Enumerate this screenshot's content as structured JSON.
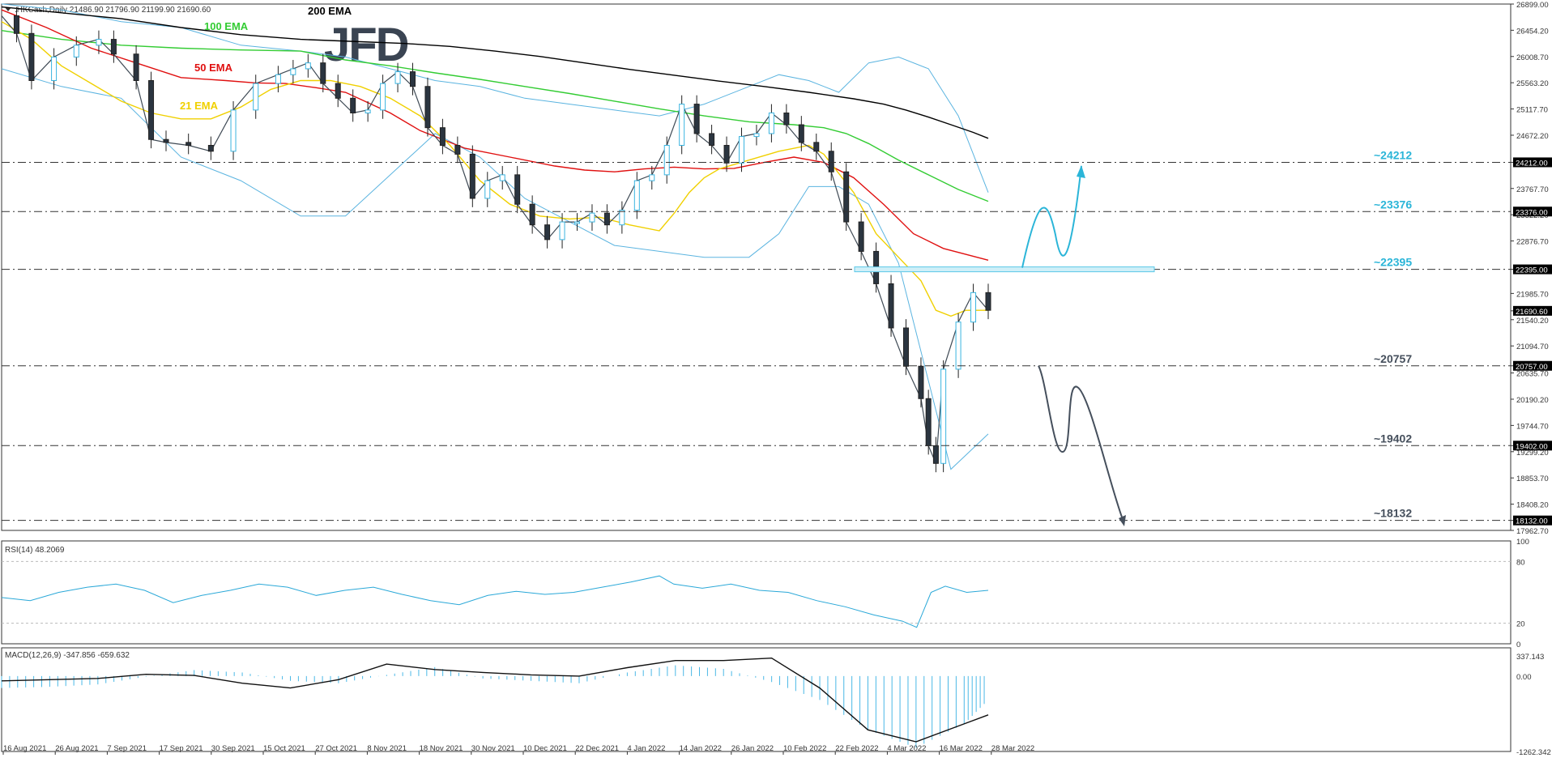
{
  "header": {
    "symbol_line": ".HKCash,Daily  21486.90 21796.90 21199.90 21690.60",
    "rsi_label": "RSI(14) 48.2069",
    "macd_label": "MACD(12,26,9) -347.856 -659.632",
    "logo": "JFD"
  },
  "chart_data": {
    "type": "line",
    "title": "",
    "xlabel": "",
    "ylabel": "",
    "ylim": [
      17962.7,
      26899.0
    ],
    "grid": false,
    "price_axis_ticks": [
      "26899.00",
      "26454.20",
      "26008.70",
      "25563.20",
      "25117.70",
      "24672.20",
      "24212.00",
      "23767.70",
      "23322.20",
      "22876.70",
      "22395.00",
      "21985.70",
      "21690.60",
      "21540.20",
      "21094.70",
      "20757.00",
      "20635.70",
      "20190.20",
      "19744.70",
      "19402.00",
      "19299.20",
      "18853.70",
      "18408.20",
      "18132.00",
      "17962.70"
    ],
    "date_labels": [
      "16 Aug 2021",
      "26 Aug 2021",
      "7 Sep 2021",
      "17 Sep 2021",
      "30 Sep 2021",
      "15 Oct 2021",
      "27 Oct 2021",
      "8 Nov 2021",
      "18 Nov 2021",
      "30 Nov 2021",
      "10 Dec 2021",
      "22 Dec 2021",
      "4 Jan 2022",
      "14 Jan 2022",
      "26 Jan 2022",
      "10 Feb 2022",
      "22 Feb 2022",
      "4 Mar 2022",
      "16 Mar 2022",
      "28 Mar 2022"
    ],
    "current_price": "21690.60",
    "levels": [
      {
        "value": 24212,
        "label": "~24212",
        "axis_label": "24212.00",
        "color": "#2bb5d8"
      },
      {
        "value": 23376,
        "label": "~23376",
        "axis_label": "23376.00",
        "color": "#2bb5d8"
      },
      {
        "value": 22395,
        "label": "~22395",
        "axis_label": "22395.00",
        "color": "#2bb5d8"
      },
      {
        "value": 20757,
        "label": "~20757",
        "axis_label": "20757.00",
        "color": "#454f5c"
      },
      {
        "value": 19402,
        "label": "~19402",
        "axis_label": "19402.00",
        "color": "#454f5c"
      },
      {
        "value": 18132,
        "label": "~18132",
        "axis_label": "18132.00",
        "color": "#454f5c"
      }
    ],
    "ema_labels": [
      {
        "text": "200 EMA",
        "color": "#000000"
      },
      {
        "text": "100 EMA",
        "color": "#33cc33"
      },
      {
        "text": "50 EMA",
        "color": "#e01010"
      },
      {
        "text": "21 EMA",
        "color": "#f0d000"
      }
    ],
    "series": [
      {
        "name": "200 EMA",
        "color": "#000000",
        "values": [
          [
            0,
            26850
          ],
          [
            40,
            26750
          ],
          [
            80,
            26650
          ],
          [
            120,
            26500
          ],
          [
            160,
            26380
          ],
          [
            200,
            26300
          ],
          [
            240,
            26260
          ],
          [
            270,
            26230
          ],
          [
            300,
            26180
          ],
          [
            330,
            26100
          ],
          [
            360,
            26010
          ],
          [
            390,
            25900
          ],
          [
            420,
            25790
          ],
          [
            450,
            25690
          ],
          [
            480,
            25590
          ],
          [
            510,
            25500
          ],
          [
            540,
            25400
          ],
          [
            570,
            25290
          ],
          [
            590,
            25200
          ],
          [
            605,
            25100
          ],
          [
            620,
            24980
          ],
          [
            635,
            24850
          ],
          [
            650,
            24720
          ],
          [
            660,
            24620
          ]
        ]
      },
      {
        "name": "100 EMA",
        "color": "#33cc33",
        "values": [
          [
            0,
            26450
          ],
          [
            40,
            26300
          ],
          [
            80,
            26200
          ],
          [
            120,
            26150
          ],
          [
            160,
            26120
          ],
          [
            200,
            26100
          ],
          [
            230,
            25950
          ],
          [
            260,
            25850
          ],
          [
            290,
            25730
          ],
          [
            320,
            25620
          ],
          [
            350,
            25500
          ],
          [
            380,
            25380
          ],
          [
            410,
            25250
          ],
          [
            440,
            25120
          ],
          [
            470,
            25000
          ],
          [
            500,
            24900
          ],
          [
            530,
            24850
          ],
          [
            550,
            24800
          ],
          [
            565,
            24700
          ],
          [
            580,
            24530
          ],
          [
            600,
            24250
          ],
          [
            620,
            24000
          ],
          [
            640,
            23750
          ],
          [
            660,
            23550
          ]
        ]
      },
      {
        "name": "50 EMA",
        "color": "#e01010",
        "values": [
          [
            0,
            26800
          ],
          [
            30,
            26500
          ],
          [
            60,
            26150
          ],
          [
            90,
            25900
          ],
          [
            120,
            25650
          ],
          [
            150,
            25600
          ],
          [
            170,
            25560
          ],
          [
            190,
            25550
          ],
          [
            210,
            25480
          ],
          [
            230,
            25400
          ],
          [
            260,
            25050
          ],
          [
            280,
            24750
          ],
          [
            310,
            24450
          ],
          [
            340,
            24300
          ],
          [
            370,
            24150
          ],
          [
            390,
            24080
          ],
          [
            410,
            24050
          ],
          [
            430,
            24100
          ],
          [
            450,
            24130
          ],
          [
            470,
            24100
          ],
          [
            490,
            24110
          ],
          [
            510,
            24210
          ],
          [
            530,
            24300
          ],
          [
            550,
            24210
          ],
          [
            570,
            23950
          ],
          [
            590,
            23500
          ],
          [
            610,
            23000
          ],
          [
            630,
            22750
          ],
          [
            660,
            22550
          ]
        ]
      },
      {
        "name": "21 EMA",
        "color": "#f0d000",
        "values": [
          [
            0,
            26600
          ],
          [
            20,
            26300
          ],
          [
            40,
            25850
          ],
          [
            60,
            25550
          ],
          [
            80,
            25250
          ],
          [
            100,
            25050
          ],
          [
            120,
            24950
          ],
          [
            140,
            24950
          ],
          [
            160,
            25150
          ],
          [
            180,
            25450
          ],
          [
            200,
            25600
          ],
          [
            220,
            25600
          ],
          [
            240,
            25500
          ],
          [
            260,
            25300
          ],
          [
            280,
            25000
          ],
          [
            300,
            24500
          ],
          [
            320,
            23900
          ],
          [
            340,
            23500
          ],
          [
            360,
            23300
          ],
          [
            380,
            23250
          ],
          [
            400,
            23280
          ],
          [
            420,
            23150
          ],
          [
            440,
            23050
          ],
          [
            450,
            23350
          ],
          [
            460,
            23700
          ],
          [
            470,
            23950
          ],
          [
            480,
            24100
          ],
          [
            500,
            24250
          ],
          [
            520,
            24400
          ],
          [
            540,
            24500
          ],
          [
            550,
            24350
          ],
          [
            570,
            23700
          ],
          [
            585,
            23000
          ],
          [
            600,
            22600
          ],
          [
            615,
            22200
          ],
          [
            625,
            21700
          ],
          [
            635,
            21600
          ],
          [
            645,
            21700
          ],
          [
            660,
            21700
          ]
        ]
      },
      {
        "name": "Price",
        "color": "#3f4a55",
        "values": [
          [
            0,
            26700
          ],
          [
            10,
            26400
          ],
          [
            20,
            25600
          ],
          [
            35,
            26000
          ],
          [
            50,
            26200
          ],
          [
            65,
            26300
          ],
          [
            75,
            26050
          ],
          [
            90,
            25600
          ],
          [
            100,
            24600
          ],
          [
            110,
            24550
          ],
          [
            125,
            24500
          ],
          [
            140,
            24400
          ],
          [
            155,
            25100
          ],
          [
            170,
            25550
          ],
          [
            185,
            25700
          ],
          [
            195,
            25800
          ],
          [
            205,
            25900
          ],
          [
            215,
            25550
          ],
          [
            225,
            25300
          ],
          [
            235,
            25050
          ],
          [
            245,
            25100
          ],
          [
            255,
            25550
          ],
          [
            265,
            25750
          ],
          [
            275,
            25500
          ],
          [
            285,
            24800
          ],
          [
            295,
            24500
          ],
          [
            305,
            24350
          ],
          [
            315,
            23600
          ],
          [
            325,
            23900
          ],
          [
            335,
            24000
          ],
          [
            345,
            23500
          ],
          [
            355,
            23150
          ],
          [
            365,
            22900
          ],
          [
            375,
            23200
          ],
          [
            385,
            23200
          ],
          [
            395,
            23350
          ],
          [
            405,
            23150
          ],
          [
            415,
            23400
          ],
          [
            425,
            23900
          ],
          [
            435,
            24000
          ],
          [
            445,
            24500
          ],
          [
            455,
            25200
          ],
          [
            465,
            24700
          ],
          [
            475,
            24500
          ],
          [
            485,
            24200
          ],
          [
            495,
            24650
          ],
          [
            505,
            24700
          ],
          [
            515,
            25050
          ],
          [
            525,
            24850
          ],
          [
            535,
            24550
          ],
          [
            545,
            24400
          ],
          [
            555,
            24050
          ],
          [
            565,
            23200
          ],
          [
            575,
            22700
          ],
          [
            585,
            22150
          ],
          [
            595,
            21400
          ],
          [
            605,
            20750
          ],
          [
            615,
            20200
          ],
          [
            620,
            19400
          ],
          [
            625,
            19100
          ],
          [
            630,
            20700
          ],
          [
            640,
            21500
          ],
          [
            650,
            22000
          ],
          [
            660,
            21700
          ]
        ]
      }
    ],
    "rsi": {
      "levels": [
        "100",
        "80",
        "20",
        "0"
      ],
      "values": [
        [
          0,
          45
        ],
        [
          20,
          42
        ],
        [
          40,
          50
        ],
        [
          60,
          55
        ],
        [
          80,
          58
        ],
        [
          100,
          52
        ],
        [
          120,
          40
        ],
        [
          140,
          47
        ],
        [
          160,
          52
        ],
        [
          180,
          58
        ],
        [
          200,
          55
        ],
        [
          220,
          47
        ],
        [
          240,
          52
        ],
        [
          260,
          55
        ],
        [
          280,
          48
        ],
        [
          300,
          42
        ],
        [
          320,
          38
        ],
        [
          340,
          47
        ],
        [
          360,
          51
        ],
        [
          380,
          48
        ],
        [
          400,
          50
        ],
        [
          420,
          55
        ],
        [
          440,
          60
        ],
        [
          460,
          66
        ],
        [
          470,
          58
        ],
        [
          490,
          54
        ],
        [
          510,
          58
        ],
        [
          530,
          52
        ],
        [
          550,
          50
        ],
        [
          570,
          42
        ],
        [
          590,
          36
        ],
        [
          610,
          28
        ],
        [
          630,
          22
        ],
        [
          640,
          16
        ],
        [
          650,
          50
        ],
        [
          660,
          56
        ],
        [
          675,
          50
        ],
        [
          690,
          52
        ]
      ]
    },
    "macd": {
      "axis": [
        "337.143",
        "0.00",
        "-1262.342"
      ],
      "signal": [
        [
          0,
          -80
        ],
        [
          40,
          -60
        ],
        [
          80,
          -40
        ],
        [
          120,
          30
        ],
        [
          160,
          10
        ],
        [
          200,
          -120
        ],
        [
          240,
          -200
        ],
        [
          280,
          -60
        ],
        [
          320,
          200
        ],
        [
          360,
          110
        ],
        [
          400,
          60
        ],
        [
          440,
          20
        ],
        [
          480,
          0
        ],
        [
          520,
          140
        ],
        [
          560,
          260
        ],
        [
          600,
          260
        ],
        [
          640,
          300
        ],
        [
          680,
          -200
        ],
        [
          720,
          -900
        ],
        [
          760,
          -1100
        ],
        [
          800,
          -800
        ],
        [
          820,
          -650
        ]
      ],
      "histogram": [
        [
          0,
          -200
        ],
        [
          40,
          -180
        ],
        [
          80,
          -140
        ],
        [
          120,
          -10
        ],
        [
          160,
          100
        ],
        [
          200,
          60
        ],
        [
          240,
          -80
        ],
        [
          280,
          -120
        ],
        [
          320,
          20
        ],
        [
          360,
          150
        ],
        [
          400,
          -40
        ],
        [
          440,
          -80
        ],
        [
          480,
          -120
        ],
        [
          520,
          60
        ],
        [
          560,
          180
        ],
        [
          600,
          120
        ],
        [
          640,
          -100
        ],
        [
          680,
          -400
        ],
        [
          720,
          -900
        ],
        [
          760,
          -1200
        ],
        [
          800,
          -800
        ],
        [
          820,
          -400
        ]
      ]
    }
  }
}
